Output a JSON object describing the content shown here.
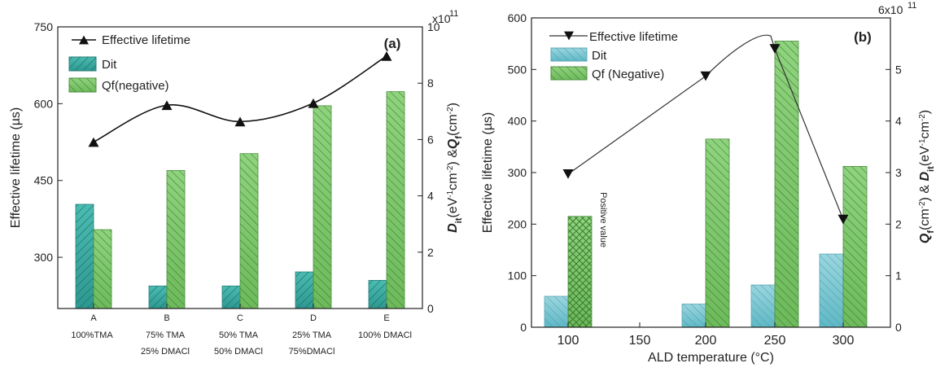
{
  "chart_data": [
    {
      "type": "bar",
      "panel_label": "(a)",
      "categories": [
        "A",
        "B",
        "C",
        "D",
        "E"
      ],
      "category_sublabels": [
        [
          "100%TMA"
        ],
        [
          "75% TMA",
          "25% DMACl"
        ],
        [
          "50% TMA",
          "50% DMACl"
        ],
        [
          "25% TMA",
          "75%DMACl"
        ],
        [
          "100% DMACl"
        ]
      ],
      "ylabel_left": "Effective lifetime (µs)",
      "ylabel_right": "Dit(eV⁻¹cm⁻²) &Qf(cm⁻²)",
      "ylabel_right_parts": [
        "D",
        "it",
        "(eV",
        "-1",
        "cm",
        "-2",
        ") &",
        "Q",
        "f",
        "(cm",
        "-2",
        ")"
      ],
      "right_multiplier": "x10",
      "right_multiplier_exp": "11",
      "ylim_left": [
        200,
        750
      ],
      "ylim_right": [
        0,
        10
      ],
      "left_ticks": [
        "300",
        "450",
        "600",
        "750"
      ],
      "right_ticks": [
        "0",
        "2",
        "4",
        "6",
        "8",
        "10"
      ],
      "legend": [
        "Effective lifetime",
        "Dit",
        "Qf(negative)"
      ],
      "series": [
        {
          "name": "Effective lifetime",
          "kind": "line",
          "axis": "left",
          "values": [
            525,
            597,
            565,
            601,
            693
          ]
        },
        {
          "name": "Dit",
          "kind": "bar",
          "axis": "right",
          "values": [
            3.7,
            0.8,
            0.8,
            1.3,
            1.0
          ]
        },
        {
          "name": "Qf(negative)",
          "kind": "bar",
          "axis": "right",
          "values": [
            2.8,
            4.9,
            5.5,
            7.2,
            7.7
          ]
        }
      ],
      "colors": {
        "dit": "#3aaea6",
        "qf": "#7cc86a",
        "line": "#111111"
      }
    },
    {
      "type": "bar",
      "panel_label": "(b)",
      "categories": [
        "100",
        "150",
        "200",
        "250",
        "300"
      ],
      "xlabel": "ALD temperature (°C)",
      "ylabel_left": "Effective lifetime (µs)",
      "ylabel_right": "Qf(cm⁻²) & Dit(eV⁻¹cm⁻²)",
      "ylabel_right_parts": [
        "Q",
        "f",
        "(cm",
        "-2",
        ") & ",
        "D",
        "it",
        "(eV",
        "-1",
        "cm",
        "-2",
        ")"
      ],
      "right_multiplier": "6x10",
      "right_multiplier_exp": "11",
      "ylim_left": [
        0,
        600
      ],
      "ylim_right": [
        0,
        6
      ],
      "left_ticks": [
        "0",
        "100",
        "200",
        "300",
        "400",
        "500",
        "600"
      ],
      "right_ticks": [
        "0",
        "1",
        "2",
        "3",
        "4",
        "5"
      ],
      "legend": [
        "Effective lifetime",
        "Dit",
        "Qf (Negative)"
      ],
      "annotation": "Positive value",
      "series": [
        {
          "name": "Effective lifetime",
          "kind": "line",
          "axis": "left",
          "x": [
            "100",
            "200",
            "250",
            "300"
          ],
          "values": [
            297,
            487,
            540,
            209
          ]
        },
        {
          "name": "Dit",
          "kind": "bar",
          "axis": "right",
          "x": [
            "100",
            "200",
            "250",
            "300"
          ],
          "values": [
            0.6,
            0.45,
            0.82,
            1.42
          ]
        },
        {
          "name": "Qf (Negative)",
          "kind": "bar",
          "axis": "right",
          "x": [
            "100",
            "200",
            "250",
            "300"
          ],
          "values": [
            2.15,
            3.65,
            5.55,
            3.12
          ]
        }
      ],
      "colors": {
        "dit": "#6ec3d0",
        "qf": "#7cc86a",
        "line": "#333333"
      }
    }
  ]
}
